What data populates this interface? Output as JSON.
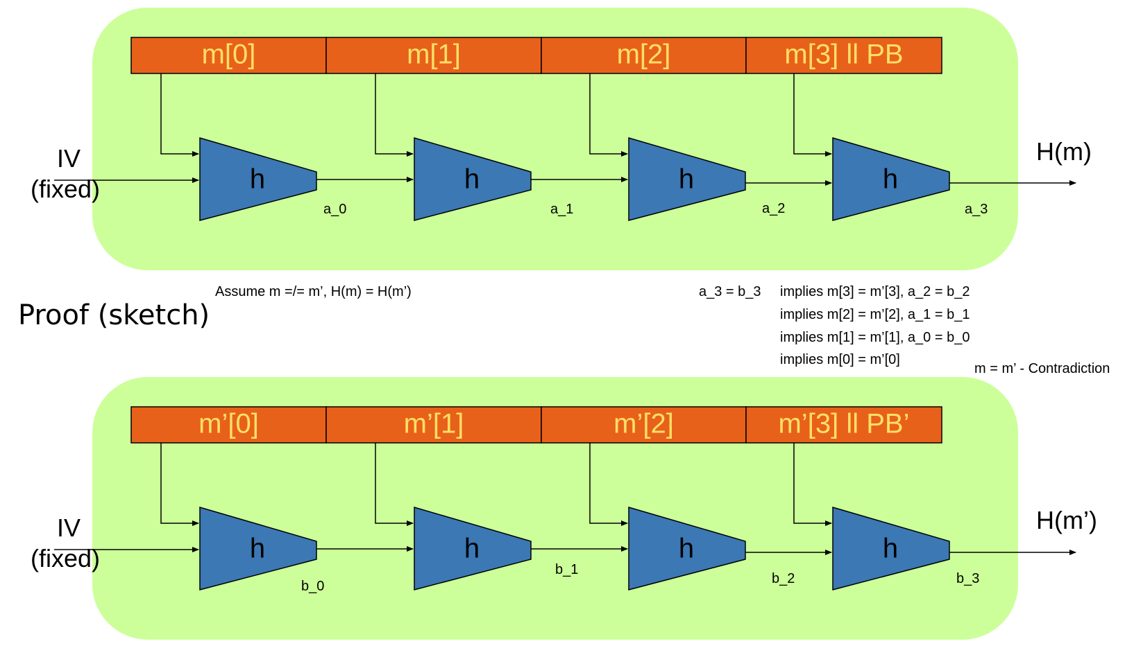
{
  "top_chain": {
    "message_blocks": [
      "m[0]",
      "m[1]",
      "m[2]",
      "m[3]  ll   PB"
    ],
    "function_label": "h",
    "outputs": [
      "a_0",
      "a_1",
      "a_2",
      "a_3"
    ],
    "iv_line1": "IV",
    "iv_line2": "(fixed)",
    "hash_output": "H(m)"
  },
  "bottom_chain": {
    "message_blocks": [
      "m’[0]",
      "m’[1]",
      "m’[2]",
      "m’[3]  ll   PB’"
    ],
    "function_label": "h",
    "outputs": [
      "b_0",
      "b_1",
      "b_2",
      "b_3"
    ],
    "iv_line1": "IV",
    "iv_line2": "(fixed)",
    "hash_output": "H(m’)"
  },
  "proof": {
    "heading": "Proof (sketch)",
    "assumption": "Assume m =/= m’, H(m) = H(m’)",
    "equality": "a_3 = b_3",
    "implications": [
      "implies m[3] = m’[3], a_2 = b_2",
      "implies m[2] = m’[2], a_1 = b_1",
      "implies m[1] = m’[1], a_0 = b_0",
      "implies m[0] = m’[0]"
    ],
    "conclusion": "m = m’ - Contradiction"
  },
  "colors": {
    "panel": "#ccff99",
    "block": "#e8611a",
    "block_text": "#ffe066",
    "compressor": "#3b78b4",
    "line": "#000000"
  }
}
